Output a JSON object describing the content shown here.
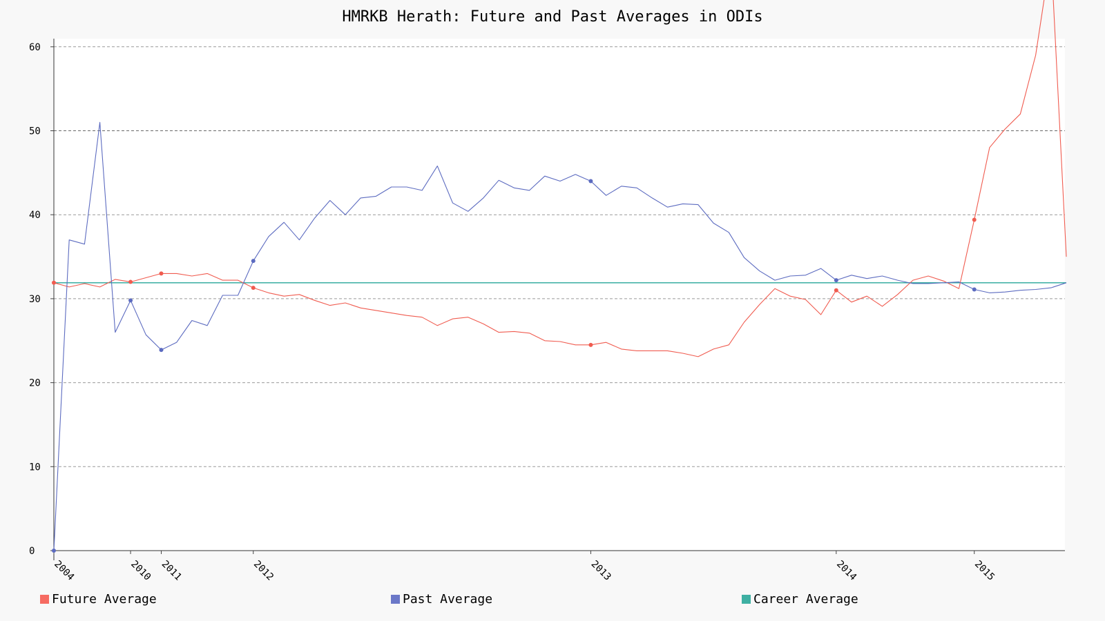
{
  "chart_data": {
    "type": "line",
    "title": "HMRKB Herath: Future and Past Averages in ODIs",
    "xlabel": "",
    "ylabel": "",
    "ylim": [
      0,
      61
    ],
    "y_ticks": [
      0,
      10,
      20,
      30,
      40,
      50,
      60
    ],
    "grid": true,
    "legend_position": "bottom",
    "x_tick_labels": [
      {
        "label": "2004",
        "index": 0
      },
      {
        "label": "2010",
        "index": 5
      },
      {
        "label": "2011",
        "index": 7
      },
      {
        "label": "2012",
        "index": 13
      },
      {
        "label": "2013",
        "index": 35
      },
      {
        "label": "2014",
        "index": 51
      },
      {
        "label": "2015",
        "index": 60
      }
    ],
    "series": [
      {
        "name": "Future Average",
        "color": "#f05b4f",
        "marker_indices": [
          0,
          5,
          7,
          13,
          35,
          51,
          60
        ],
        "values": [
          31.9,
          31.4,
          31.8,
          31.4,
          32.3,
          32.0,
          32.5,
          33.0,
          33.0,
          32.7,
          33.0,
          32.2,
          32.2,
          31.3,
          30.7,
          30.3,
          30.5,
          29.8,
          29.2,
          29.5,
          28.9,
          28.6,
          28.3,
          28.0,
          27.8,
          26.8,
          27.6,
          27.8,
          27.0,
          26.0,
          26.1,
          25.9,
          25.0,
          24.9,
          24.5,
          24.5,
          24.8,
          24.0,
          23.8,
          23.8,
          23.8,
          23.5,
          23.1,
          24.0,
          24.5,
          27.2,
          29.3,
          31.2,
          30.3,
          29.9,
          28.1,
          31.0,
          29.6,
          30.3,
          29.1,
          30.5,
          32.2,
          32.7,
          32.1,
          31.2,
          39.4,
          48.0,
          50.2,
          52.0,
          59.0,
          71.0,
          35.0
        ]
      },
      {
        "name": "Past Average",
        "color": "#5c6bc0",
        "marker_indices": [
          0,
          5,
          7,
          13,
          35,
          51,
          60
        ],
        "values": [
          0,
          37.0,
          36.5,
          51.0,
          26.0,
          29.8,
          25.7,
          23.9,
          24.8,
          27.4,
          26.8,
          30.4,
          30.4,
          34.5,
          37.4,
          39.1,
          37.0,
          39.6,
          41.7,
          40.0,
          42.0,
          42.2,
          43.3,
          43.3,
          42.9,
          45.8,
          41.4,
          40.4,
          42.0,
          44.1,
          43.2,
          42.9,
          44.6,
          44.0,
          44.8,
          44.0,
          42.3,
          43.4,
          43.2,
          42.0,
          40.9,
          41.3,
          41.2,
          39.0,
          37.9,
          34.9,
          33.3,
          32.2,
          32.7,
          32.8,
          33.6,
          32.2,
          32.8,
          32.4,
          32.7,
          32.2,
          31.8,
          31.8,
          31.9,
          32.0,
          31.1,
          30.7,
          30.8,
          31.0,
          31.1,
          31.3,
          31.9
        ]
      },
      {
        "name": "Career Average",
        "color": "#26a69a",
        "marker_indices": [],
        "values": [
          31.9,
          31.9,
          31.9,
          31.9,
          31.9,
          31.9,
          31.9,
          31.9,
          31.9,
          31.9,
          31.9,
          31.9,
          31.9,
          31.9,
          31.9,
          31.9,
          31.9,
          31.9,
          31.9,
          31.9,
          31.9,
          31.9,
          31.9,
          31.9,
          31.9,
          31.9,
          31.9,
          31.9,
          31.9,
          31.9,
          31.9,
          31.9,
          31.9,
          31.9,
          31.9,
          31.9,
          31.9,
          31.9,
          31.9,
          31.9,
          31.9,
          31.9,
          31.9,
          31.9,
          31.9,
          31.9,
          31.9,
          31.9,
          31.9,
          31.9,
          31.9,
          31.9,
          31.9,
          31.9,
          31.9,
          31.9,
          31.9,
          31.9,
          31.9,
          31.9,
          31.9,
          31.9,
          31.9,
          31.9,
          31.9,
          31.9,
          31.9
        ]
      }
    ]
  }
}
